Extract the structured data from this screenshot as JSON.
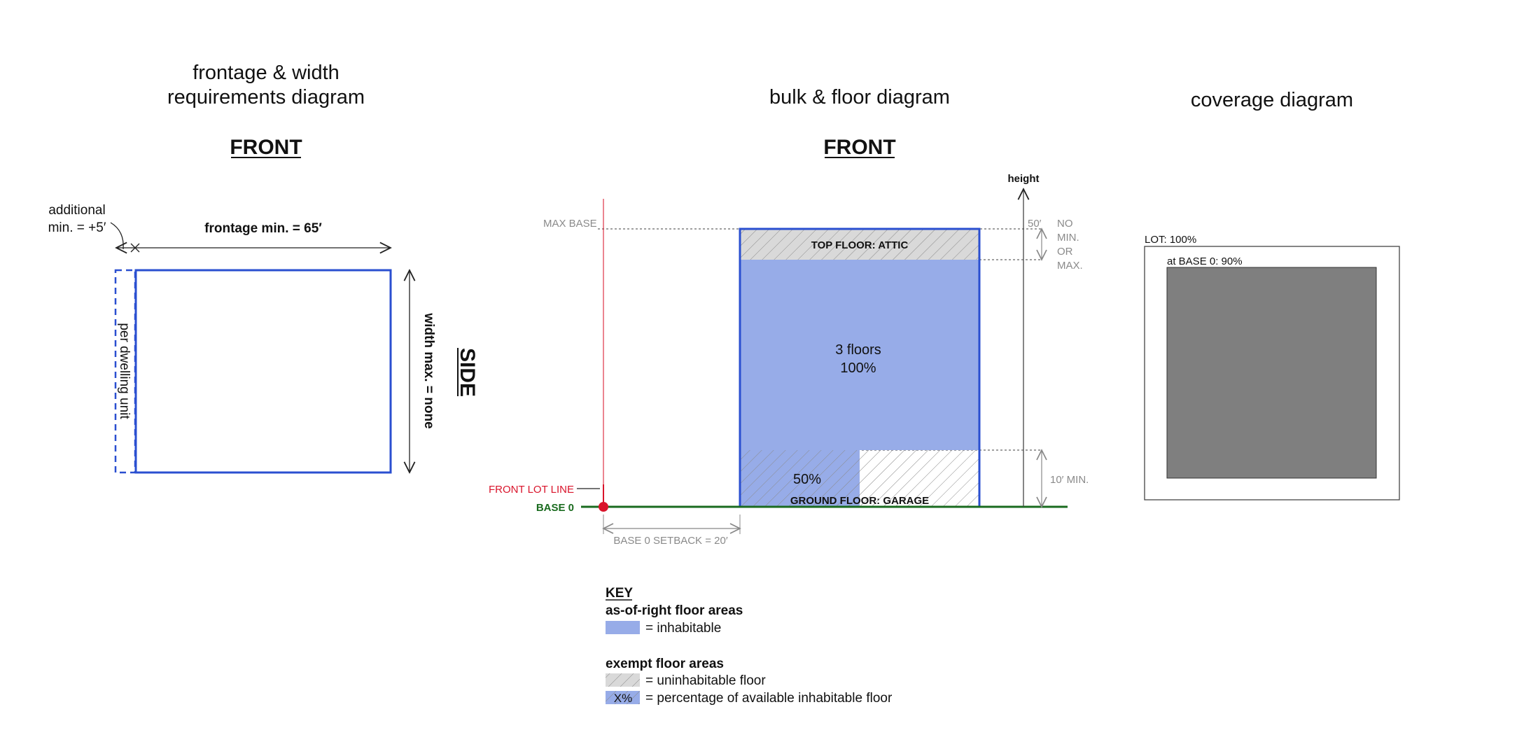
{
  "colors": {
    "blue_outline": "#2a4fd0",
    "blue_fill": "#97ace8",
    "attic_fill": "#d9d9d9",
    "coverage_fill": "#7f7f7f",
    "lot_line_red": "#d9142b",
    "base_green": "#1a6b1f",
    "gray_text": "#8a8a8a"
  },
  "frontage_diagram": {
    "title_line1": "frontage & width",
    "title_line2": "requirements diagram",
    "front_label": "FRONT",
    "side_label": "SIDE",
    "additional_line1": "additional",
    "additional_line2": "min. = +5′",
    "frontage_label": "frontage min. = 65′",
    "width_label": "width max. = none",
    "per_dwelling_label": "per dwelling unit"
  },
  "bulk_diagram": {
    "title": "bulk & floor diagram",
    "front_label": "FRONT",
    "height_label": "height",
    "max_base_label": "MAX BASE",
    "height_value": "50′",
    "no_min_max_lines": [
      "NO",
      "MIN.",
      "OR",
      "MAX."
    ],
    "top_floor_label": "TOP FLOOR: ATTIC",
    "floors_label": "3 floors",
    "floors_percent": "100%",
    "garage_percent": "50%",
    "ground_floor_label": "GROUND FLOOR: GARAGE",
    "min_height_label": "10′ MIN.",
    "front_lot_line_label": "FRONT LOT LINE",
    "base_label": "BASE 0",
    "setback_label": "BASE 0 SETBACK = 20′"
  },
  "key": {
    "heading": "KEY",
    "section1": "as-of-right floor areas",
    "inhabitable": "= inhabitable",
    "section2": "exempt floor areas",
    "uninhabitable": "= uninhabitable floor",
    "swatch_text": "X%",
    "percentage": "= percentage of available inhabitable floor"
  },
  "coverage_diagram": {
    "title": "coverage diagram",
    "lot_label": "LOT: 100%",
    "base_label": "at BASE 0: 90%"
  }
}
